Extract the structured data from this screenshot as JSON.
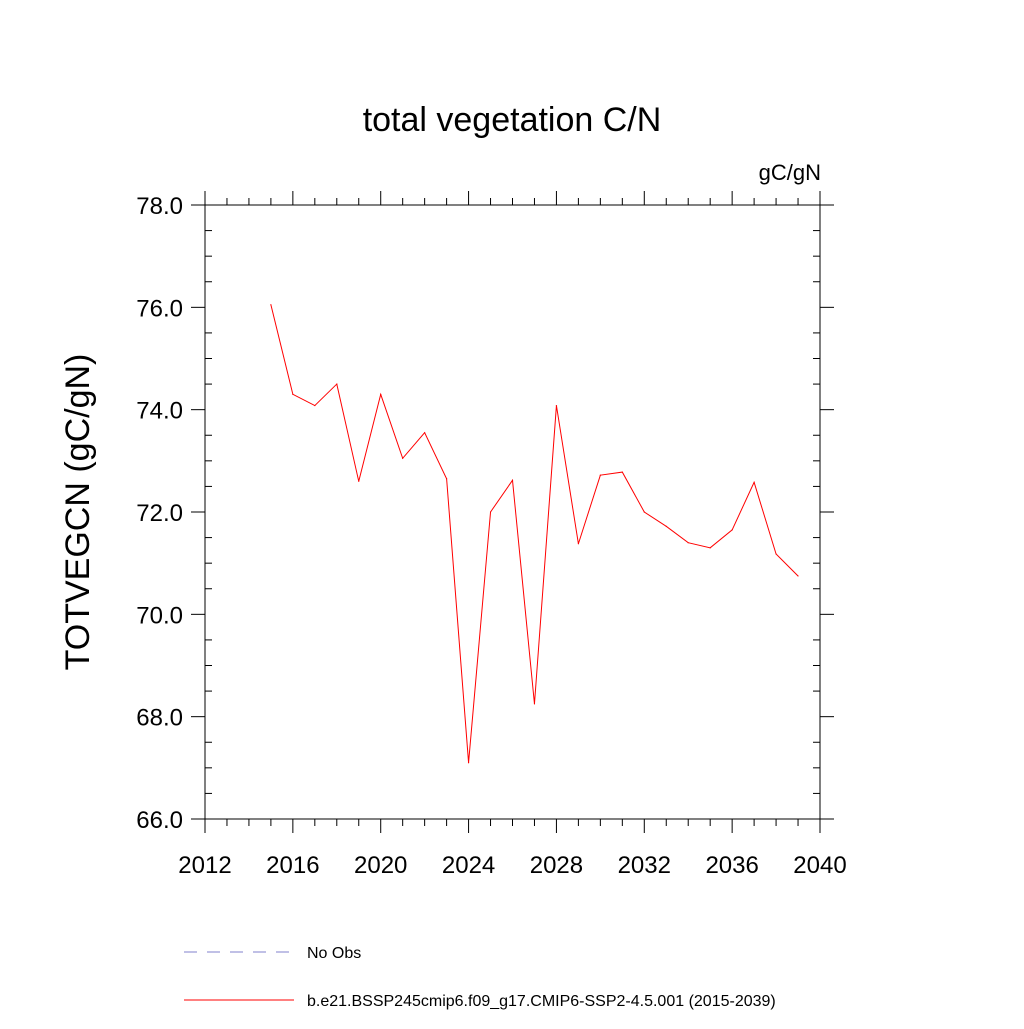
{
  "chart_data": {
    "type": "line",
    "title": "total vegetation C/N",
    "units_label": "gC/gN",
    "xlabel": "",
    "ylabel": "TOTVEGCN  (gC/gN)",
    "xlim": [
      2012,
      2040
    ],
    "ylim": [
      66.0,
      78.0
    ],
    "x_major_ticks": [
      2012,
      2016,
      2020,
      2024,
      2028,
      2032,
      2036,
      2040
    ],
    "x_minor_step": 1,
    "y_major_ticks": [
      66.0,
      68.0,
      70.0,
      72.0,
      74.0,
      76.0,
      78.0
    ],
    "y_minor_step": 0.5,
    "x_tick_labels": [
      "2012",
      "2016",
      "2020",
      "2024",
      "2028",
      "2032",
      "2036",
      "2040"
    ],
    "y_tick_labels": [
      "66.0",
      "68.0",
      "70.0",
      "72.0",
      "74.0",
      "76.0",
      "78.0"
    ],
    "grid": false,
    "legend_position": "bottom",
    "series": [
      {
        "name": "b.e21.BSSP245cmip6.f09_g17.CMIP6-SSP2-4.5.001 (2015-2039)",
        "color": "#ff0000",
        "style": "solid",
        "x": [
          2015,
          2016,
          2017,
          2018,
          2019,
          2020,
          2021,
          2022,
          2023,
          2024,
          2025,
          2026,
          2027,
          2028,
          2029,
          2030,
          2031,
          2032,
          2033,
          2034,
          2035,
          2036,
          2037,
          2038,
          2039
        ],
        "values": [
          76.05,
          74.3,
          74.08,
          74.5,
          72.6,
          74.3,
          73.05,
          73.55,
          72.65,
          67.1,
          72.0,
          72.62,
          68.25,
          74.08,
          71.38,
          72.72,
          72.78,
          72.0,
          71.72,
          71.4,
          71.3,
          71.65,
          72.58,
          71.18,
          70.75
        ]
      }
    ],
    "legend": [
      {
        "name": "No Obs",
        "color": "#8080cc",
        "style": "dashed"
      },
      {
        "name": "b.e21.BSSP245cmip6.f09_g17.CMIP6-SSP2-4.5.001 (2015-2039)",
        "color": "#ff0000",
        "style": "solid"
      }
    ]
  }
}
